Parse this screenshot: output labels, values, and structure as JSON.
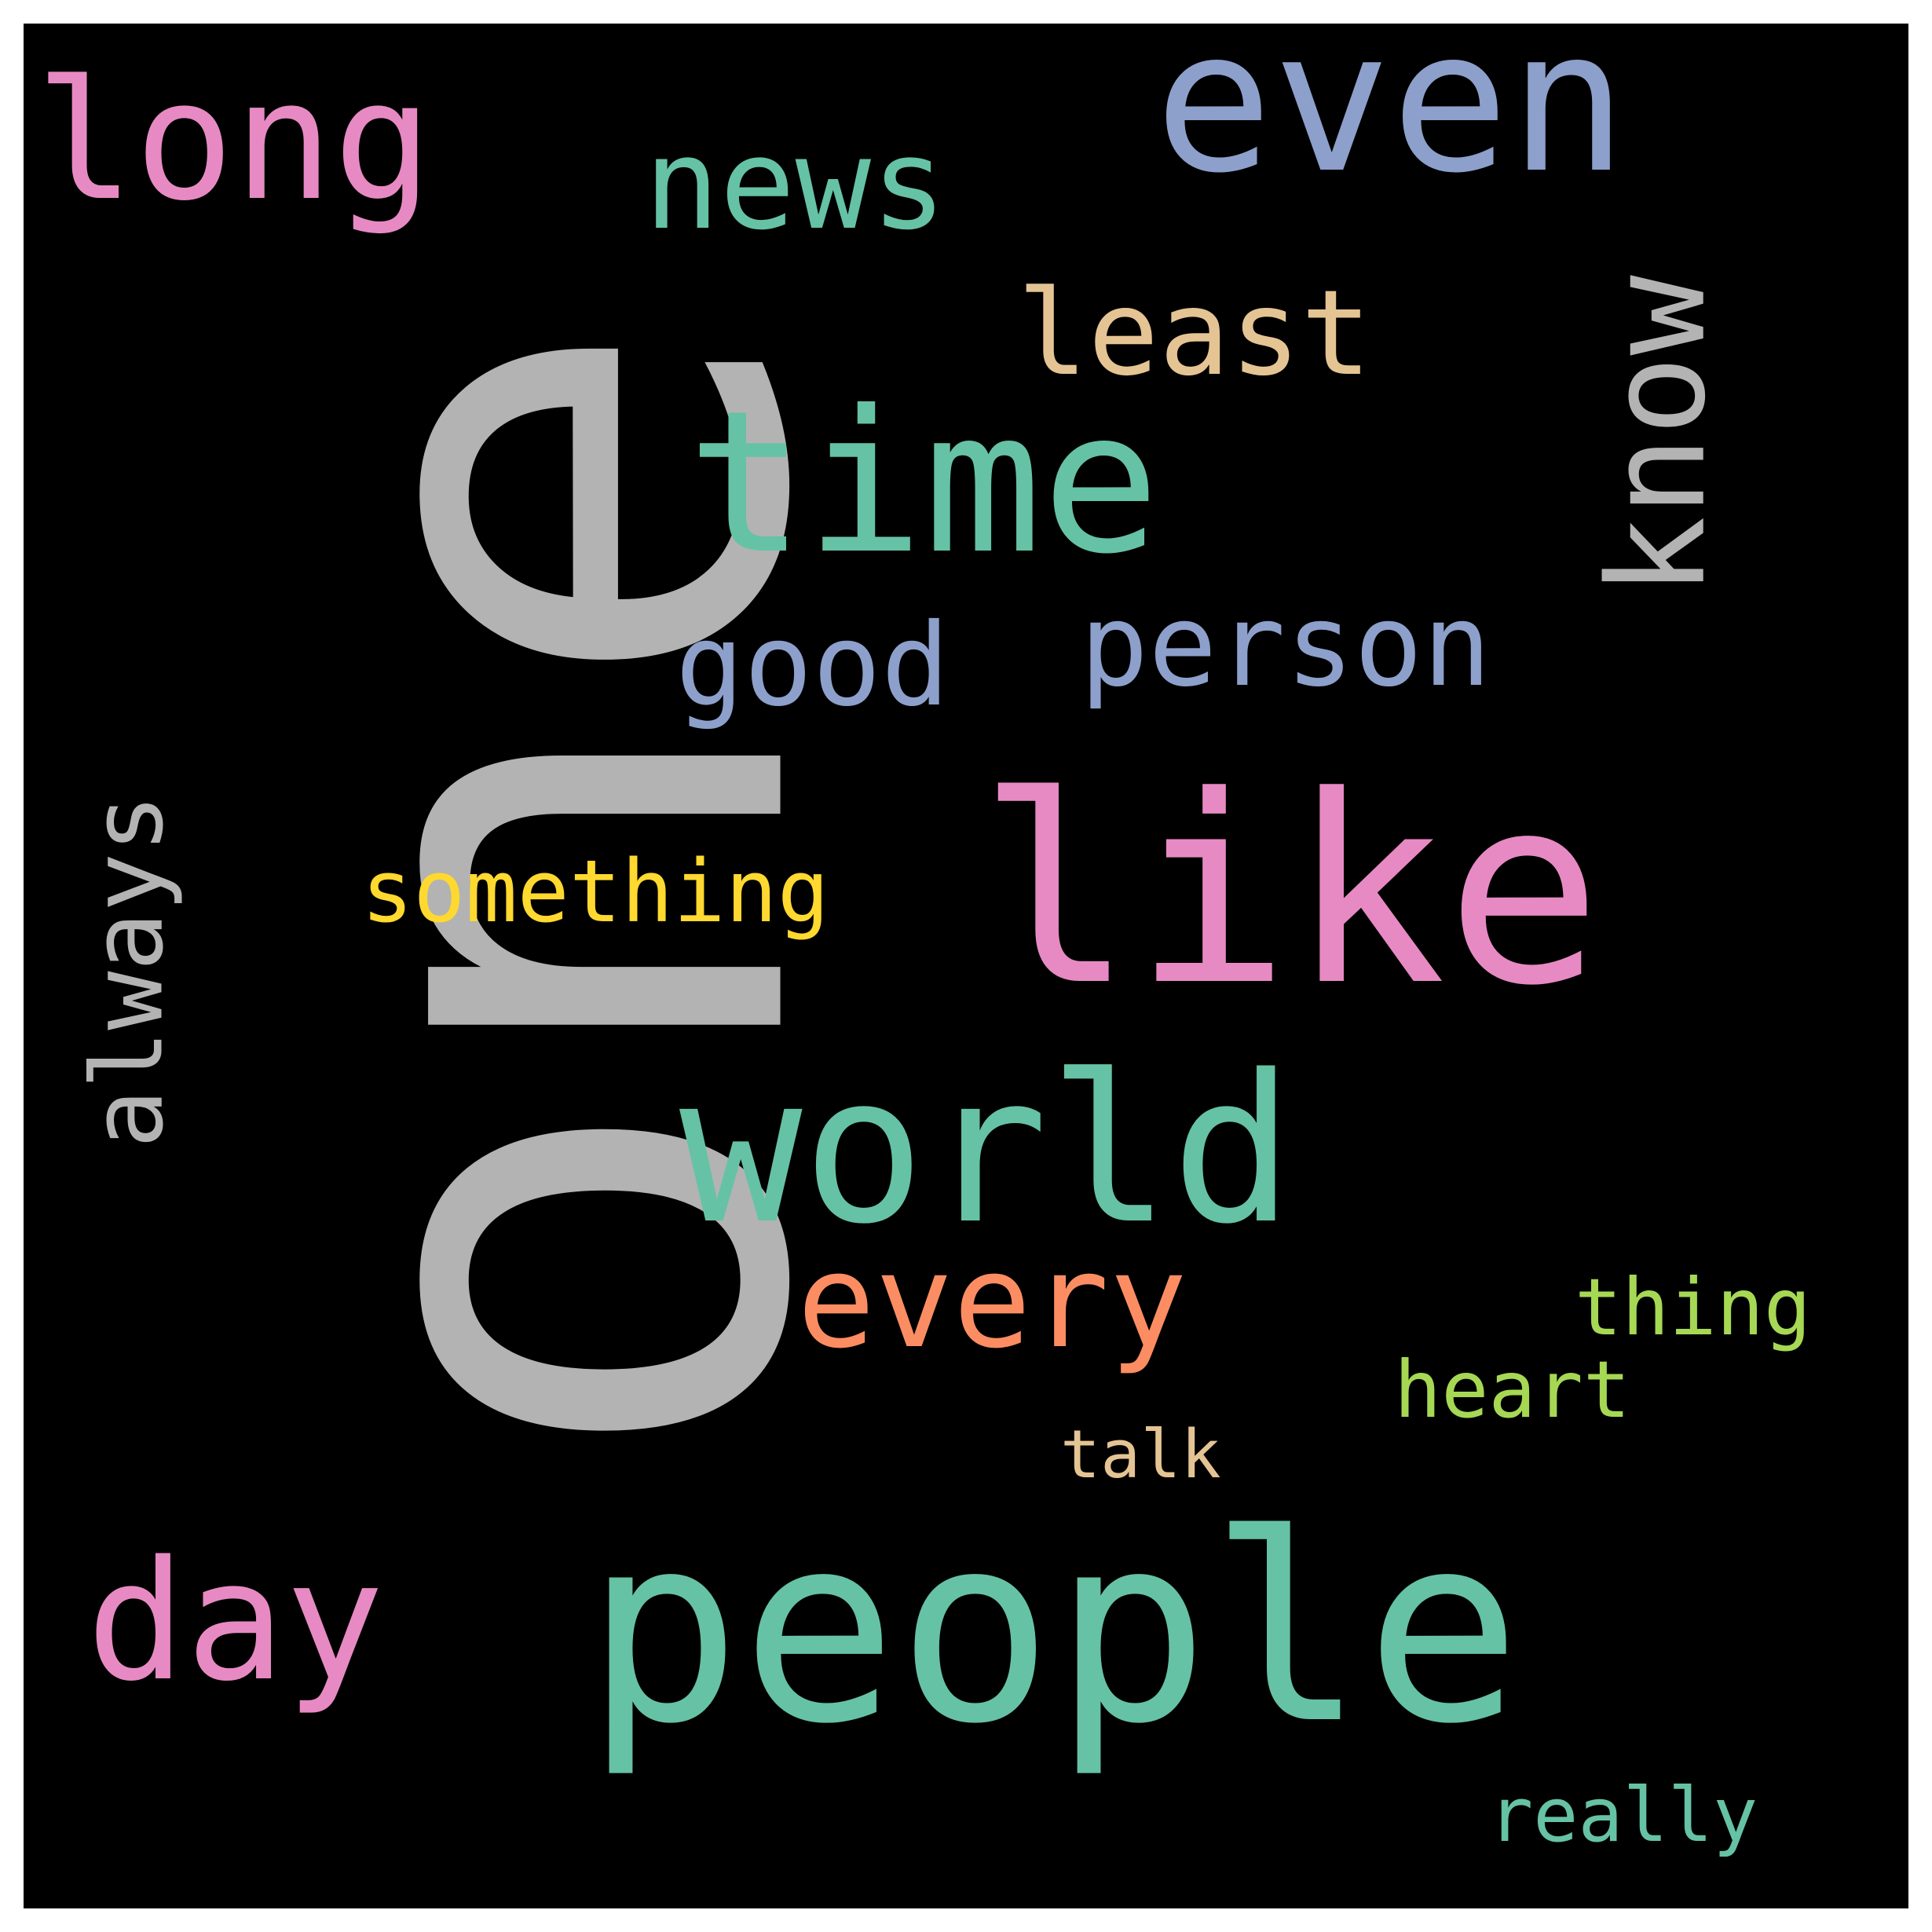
{
  "wordcloud": {
    "background": "#000000",
    "frame": "#ffffff",
    "words": [
      {
        "text": "one",
        "color": "#b3b3b3",
        "rotated": true
      },
      {
        "text": "people",
        "color": "#66c2a5",
        "rotated": false
      },
      {
        "text": "like",
        "color": "#e78ac3",
        "rotated": false
      },
      {
        "text": "world",
        "color": "#66c2a5",
        "rotated": false
      },
      {
        "text": "time",
        "color": "#66c2a5",
        "rotated": false
      },
      {
        "text": "even",
        "color": "#8da0cb",
        "rotated": false
      },
      {
        "text": "long",
        "color": "#e78ac3",
        "rotated": false
      },
      {
        "text": "day",
        "color": "#e78ac3",
        "rotated": false
      },
      {
        "text": "every",
        "color": "#fc8d62",
        "rotated": false
      },
      {
        "text": "know",
        "color": "#b3b3b3",
        "rotated": true
      },
      {
        "text": "news",
        "color": "#66c2a5",
        "rotated": false
      },
      {
        "text": "least",
        "color": "#e5c494",
        "rotated": false
      },
      {
        "text": "good",
        "color": "#8da0cb",
        "rotated": false
      },
      {
        "text": "person",
        "color": "#8da0cb",
        "rotated": false
      },
      {
        "text": "always",
        "color": "#b3b3b3",
        "rotated": true
      },
      {
        "text": "something",
        "color": "#ffd92f",
        "rotated": false
      },
      {
        "text": "thing",
        "color": "#a6d854",
        "rotated": false
      },
      {
        "text": "heart",
        "color": "#a6d854",
        "rotated": false
      },
      {
        "text": "talk",
        "color": "#e5c494",
        "rotated": false
      },
      {
        "text": "really",
        "color": "#66c2a5",
        "rotated": false
      }
    ]
  }
}
